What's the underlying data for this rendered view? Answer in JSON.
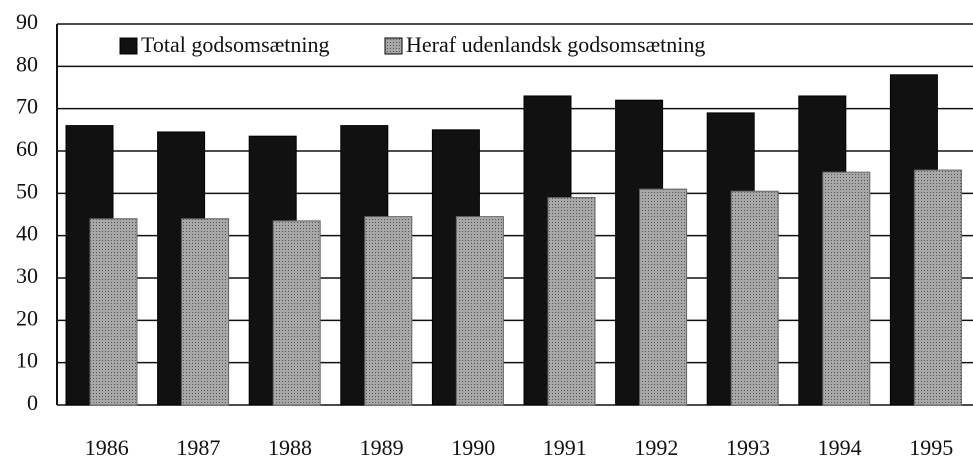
{
  "chart_data": {
    "type": "bar",
    "categories": [
      "1986",
      "1987",
      "1988",
      "1989",
      "1990",
      "1991",
      "1992",
      "1993",
      "1994",
      "1995"
    ],
    "series": [
      {
        "name": "Total godsomsætning",
        "color": "#111111",
        "values": [
          66,
          64.5,
          63.5,
          66,
          65,
          73,
          72,
          69,
          73,
          78
        ]
      },
      {
        "name": "Heraf udenlandsk godsomsætning",
        "color": "#999999",
        "values": [
          44,
          44,
          43.5,
          44.5,
          44.5,
          49,
          51,
          50.5,
          55,
          55.5
        ]
      }
    ],
    "ylim": [
      0,
      90
    ],
    "yticks": [
      0,
      10,
      20,
      30,
      40,
      50,
      60,
      70,
      80,
      90
    ],
    "grid": true,
    "legend": "top-left"
  }
}
